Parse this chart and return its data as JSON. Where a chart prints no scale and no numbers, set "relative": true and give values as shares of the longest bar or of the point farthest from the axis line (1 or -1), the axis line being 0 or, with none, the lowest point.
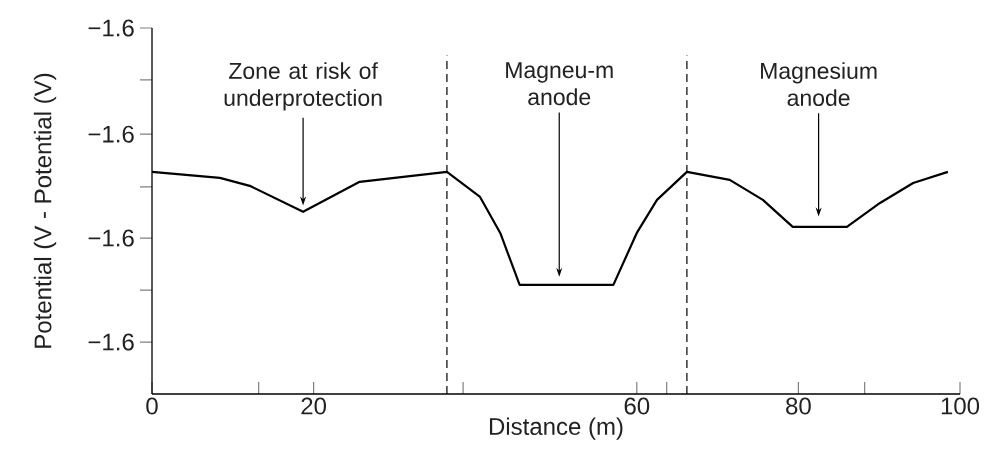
{
  "chart_data": {
    "type": "line",
    "relative": true,
    "xlabel": "Distance (m)",
    "ylabel": "Potential (V - Potential (V)",
    "series": [
      {
        "color": "#000000",
        "x": [
          0,
          8.4,
          12.1,
          18.7,
          25.7,
          36.5,
          40.6,
          43.1,
          45.5,
          57.1,
          60.0,
          62.5,
          66.2,
          71.5,
          75.6,
          79.3,
          86.0,
          90.1,
          94.2,
          98.5
        ],
        "values": [
          1,
          0.973,
          0.937,
          0.82,
          0.955,
          1,
          0.887,
          0.725,
          0.491,
          0.491,
          0.725,
          0.874,
          1,
          0.964,
          0.874,
          0.752,
          0.752,
          0.86,
          0.95,
          1
        ]
      }
    ],
    "xlim": [
      0,
      100
    ],
    "xticks": [
      0,
      {
        "value": 13.2,
        "label": null
      },
      20,
      {
        "value": 38.5,
        "label": null
      },
      60,
      {
        "value": 63.7,
        "label": null
      },
      80,
      {
        "value": 88.2,
        "label": null
      },
      100
    ],
    "ref_lines": [
      {
        "axis": "x",
        "value": 36.5,
        "color": "#000000",
        "line_style": "dashed"
      },
      {
        "axis": "x",
        "value": 66.2,
        "color": "#000000",
        "line_style": "dashed"
      }
    ],
    "annotations": [
      "Zone at risk of underprotection",
      "Magneu-m anode",
      "Magnesium anode",
      "−1.6",
      "−1.6",
      "−1.6",
      "−1.6"
    ],
    "grid": false,
    "marker": "none",
    "line_style": "solid"
  }
}
